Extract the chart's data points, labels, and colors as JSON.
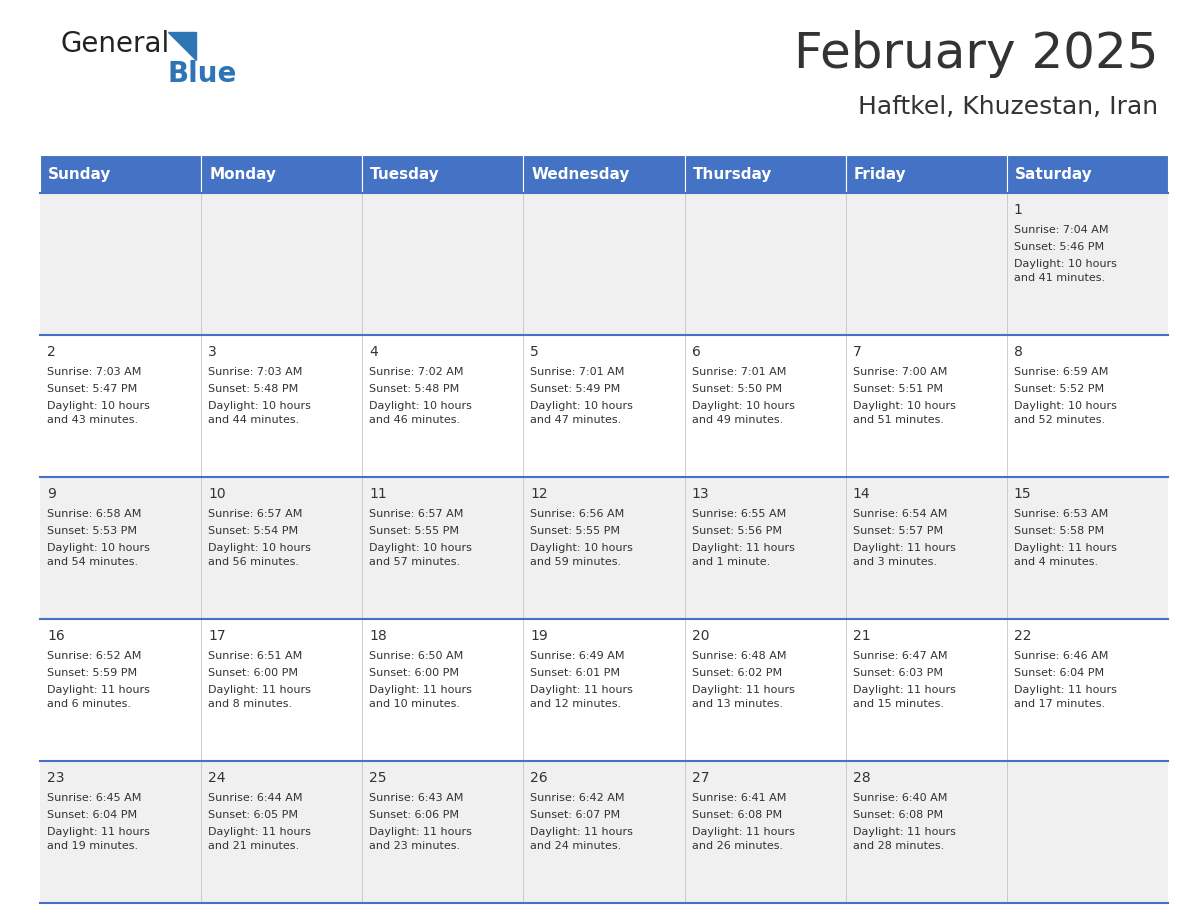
{
  "title": "February 2025",
  "subtitle": "Haftkel, Khuzestan, Iran",
  "days_of_week": [
    "Sunday",
    "Monday",
    "Tuesday",
    "Wednesday",
    "Thursday",
    "Friday",
    "Saturday"
  ],
  "header_bg": "#4472C4",
  "header_text": "#FFFFFF",
  "row_bg_odd": "#F0F0F0",
  "row_bg_even": "#FFFFFF",
  "divider_color": "#4472C4",
  "text_color": "#333333",
  "calendar_data": [
    [
      null,
      null,
      null,
      null,
      null,
      null,
      {
        "day": "1",
        "sunrise": "7:04 AM",
        "sunset": "5:46 PM",
        "daylight": "10 hours\nand 41 minutes."
      }
    ],
    [
      {
        "day": "2",
        "sunrise": "7:03 AM",
        "sunset": "5:47 PM",
        "daylight": "10 hours\nand 43 minutes."
      },
      {
        "day": "3",
        "sunrise": "7:03 AM",
        "sunset": "5:48 PM",
        "daylight": "10 hours\nand 44 minutes."
      },
      {
        "day": "4",
        "sunrise": "7:02 AM",
        "sunset": "5:48 PM",
        "daylight": "10 hours\nand 46 minutes."
      },
      {
        "day": "5",
        "sunrise": "7:01 AM",
        "sunset": "5:49 PM",
        "daylight": "10 hours\nand 47 minutes."
      },
      {
        "day": "6",
        "sunrise": "7:01 AM",
        "sunset": "5:50 PM",
        "daylight": "10 hours\nand 49 minutes."
      },
      {
        "day": "7",
        "sunrise": "7:00 AM",
        "sunset": "5:51 PM",
        "daylight": "10 hours\nand 51 minutes."
      },
      {
        "day": "8",
        "sunrise": "6:59 AM",
        "sunset": "5:52 PM",
        "daylight": "10 hours\nand 52 minutes."
      }
    ],
    [
      {
        "day": "9",
        "sunrise": "6:58 AM",
        "sunset": "5:53 PM",
        "daylight": "10 hours\nand 54 minutes."
      },
      {
        "day": "10",
        "sunrise": "6:57 AM",
        "sunset": "5:54 PM",
        "daylight": "10 hours\nand 56 minutes."
      },
      {
        "day": "11",
        "sunrise": "6:57 AM",
        "sunset": "5:55 PM",
        "daylight": "10 hours\nand 57 minutes."
      },
      {
        "day": "12",
        "sunrise": "6:56 AM",
        "sunset": "5:55 PM",
        "daylight": "10 hours\nand 59 minutes."
      },
      {
        "day": "13",
        "sunrise": "6:55 AM",
        "sunset": "5:56 PM",
        "daylight": "11 hours\nand 1 minute."
      },
      {
        "day": "14",
        "sunrise": "6:54 AM",
        "sunset": "5:57 PM",
        "daylight": "11 hours\nand 3 minutes."
      },
      {
        "day": "15",
        "sunrise": "6:53 AM",
        "sunset": "5:58 PM",
        "daylight": "11 hours\nand 4 minutes."
      }
    ],
    [
      {
        "day": "16",
        "sunrise": "6:52 AM",
        "sunset": "5:59 PM",
        "daylight": "11 hours\nand 6 minutes."
      },
      {
        "day": "17",
        "sunrise": "6:51 AM",
        "sunset": "6:00 PM",
        "daylight": "11 hours\nand 8 minutes."
      },
      {
        "day": "18",
        "sunrise": "6:50 AM",
        "sunset": "6:00 PM",
        "daylight": "11 hours\nand 10 minutes."
      },
      {
        "day": "19",
        "sunrise": "6:49 AM",
        "sunset": "6:01 PM",
        "daylight": "11 hours\nand 12 minutes."
      },
      {
        "day": "20",
        "sunrise": "6:48 AM",
        "sunset": "6:02 PM",
        "daylight": "11 hours\nand 13 minutes."
      },
      {
        "day": "21",
        "sunrise": "6:47 AM",
        "sunset": "6:03 PM",
        "daylight": "11 hours\nand 15 minutes."
      },
      {
        "day": "22",
        "sunrise": "6:46 AM",
        "sunset": "6:04 PM",
        "daylight": "11 hours\nand 17 minutes."
      }
    ],
    [
      {
        "day": "23",
        "sunrise": "6:45 AM",
        "sunset": "6:04 PM",
        "daylight": "11 hours\nand 19 minutes."
      },
      {
        "day": "24",
        "sunrise": "6:44 AM",
        "sunset": "6:05 PM",
        "daylight": "11 hours\nand 21 minutes."
      },
      {
        "day": "25",
        "sunrise": "6:43 AM",
        "sunset": "6:06 PM",
        "daylight": "11 hours\nand 23 minutes."
      },
      {
        "day": "26",
        "sunrise": "6:42 AM",
        "sunset": "6:07 PM",
        "daylight": "11 hours\nand 24 minutes."
      },
      {
        "day": "27",
        "sunrise": "6:41 AM",
        "sunset": "6:08 PM",
        "daylight": "11 hours\nand 26 minutes."
      },
      {
        "day": "28",
        "sunrise": "6:40 AM",
        "sunset": "6:08 PM",
        "daylight": "11 hours\nand 28 minutes."
      },
      null
    ]
  ],
  "logo_general_color": "#222222",
  "logo_blue_color": "#2E75B6",
  "fig_bg": "#FFFFFF",
  "header_font_size": 11,
  "day_num_font_size": 10,
  "cell_font_size": 8,
  "title_font_size": 36,
  "subtitle_font_size": 18
}
